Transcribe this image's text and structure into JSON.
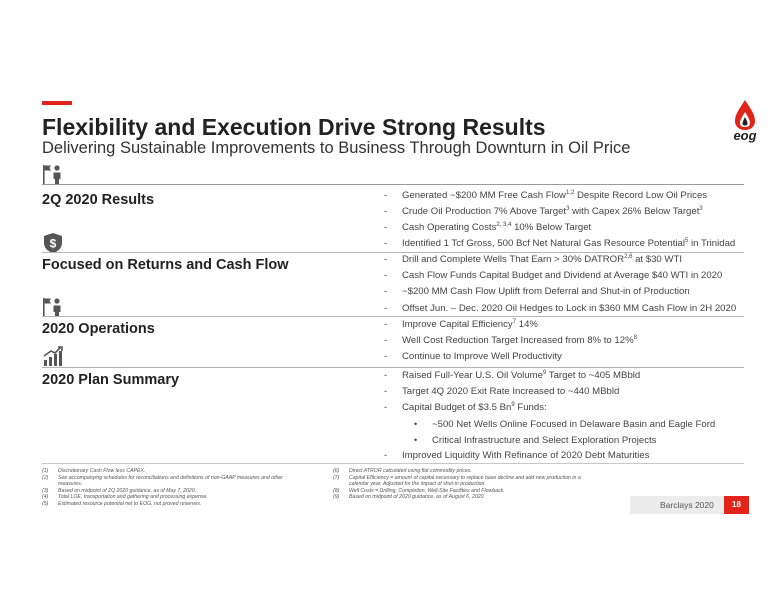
{
  "header": {
    "title": "Flexibility and Execution Drive Strong Results",
    "subtitle": "Delivering Sustainable Improvements to Business Through Downturn in Oil Price",
    "logo_text": "eog"
  },
  "sections": [
    {
      "title": "2Q 2020 Results",
      "icon": "flag-person-icon",
      "bullets": [
        [
          {
            "t": "Generated ~$200 MM Free Cash Flow"
          },
          {
            "s": "1,2"
          },
          {
            "t": " Despite Record Low Oil Prices"
          }
        ],
        [
          {
            "t": "Crude Oil Production 7% Above Target"
          },
          {
            "s": "3"
          },
          {
            "t": " with Capex 26% Below Target"
          },
          {
            "s": "3"
          }
        ],
        [
          {
            "t": "Cash Operating Costs"
          },
          {
            "s": "2, 3,4"
          },
          {
            "t": " 10% Below Target"
          }
        ],
        [
          {
            "t": "Identified 1 Tcf Gross, 500 Bcf Net Natural Gas Resource Potential"
          },
          {
            "s": "5"
          },
          {
            "t": " in Trinidad"
          }
        ]
      ]
    },
    {
      "title": "Focused on Returns and Cash Flow",
      "icon": "dollar-shield-icon",
      "bullets": [
        [
          {
            "t": "Drill and Complete Wells That Earn > 30% DATROR"
          },
          {
            "s": "2,6"
          },
          {
            "t": " at $30 WTI"
          }
        ],
        [
          {
            "t": "Cash Flow Funds Capital Budget and Dividend at Average $40 WTI in 2020"
          }
        ],
        [
          {
            "t": "~$200 MM Cash Flow Uplift from Deferral and Shut-in of Production"
          }
        ],
        [
          {
            "t": "Offset Jun. – Dec. 2020 Oil Hedges to Lock in $360 MM Cash Flow in 2H 2020"
          }
        ]
      ]
    },
    {
      "title": "2020 Operations",
      "icon": "flag-person-icon",
      "bullets": [
        [
          {
            "t": "Improve Capital Efficiency"
          },
          {
            "s": "7"
          },
          {
            "t": " 14%"
          }
        ],
        [
          {
            "t": "Well Cost Reduction Target Increased from 8% to 12%"
          },
          {
            "s": "8"
          }
        ],
        [
          {
            "t": "Continue to Improve Well Productivity"
          }
        ]
      ]
    },
    {
      "title": "2020 Plan Summary",
      "icon": "growth-chart-icon",
      "bullets": [
        [
          {
            "t": "Raised Full-Year U.S. Oil Volume"
          },
          {
            "s": "9"
          },
          {
            "t": " Target to ~405 MBbld"
          }
        ],
        [
          {
            "t": "Target 4Q 2020 Exit Rate Increased to ~440 MBbld"
          }
        ],
        [
          {
            "t": "Capital Budget of $3.5 Bn"
          },
          {
            "s": "9"
          },
          {
            "t": " Funds:"
          }
        ]
      ],
      "subbullets": [
        "~500 Net Wells Online Focused in Delaware Basin and Eagle Ford",
        "Critical Infrastructure and Select Exploration Projects"
      ],
      "final_bullet": "Improved Liquidity With Refinance of 2020 Debt Maturities"
    }
  ],
  "bullet_marker": "-",
  "sub_marker": "•",
  "footnotes_left": [
    {
      "num": "(1)",
      "lines": [
        "Discretionary Cash Flow less CAPEX."
      ]
    },
    {
      "num": "(2)",
      "lines": [
        "See accompanying schedules for reconciliations and definitions of non-GAAP measures and other",
        "measures."
      ]
    },
    {
      "num": "(3)",
      "lines": [
        "Based on midpoint of 2Q 2020 guidance, as of May 7, 2020."
      ]
    },
    {
      "num": "(4)",
      "lines": [
        "Total LOE, transportation and gathering and processing expense."
      ]
    },
    {
      "num": "(5)",
      "lines": [
        "Estimated resource potential net to EOG, not proved reserves."
      ]
    }
  ],
  "footnotes_right": [
    {
      "num": "(6)",
      "lines": [
        "Direct ATROR calculated using flat commodity prices."
      ]
    },
    {
      "num": "(7)",
      "lines": [
        "Capital Efficiency = amount of capital necessary to replace base decline and add new production in a",
        "calendar year.  Adjusted for the impact of shut-in production."
      ]
    },
    {
      "num": "(8)",
      "lines": [
        "Well Costs = Drilling, Completion, Well-Site Facilities and Flowback."
      ]
    },
    {
      "num": "(9)",
      "lines": [
        "Based on midpoint of 2020 guidance, as of August 6, 2020."
      ]
    }
  ],
  "footer": {
    "source": "Barclays 2020",
    "page_number": "18"
  },
  "colors": {
    "accent": "#e2231a",
    "text": "#222222"
  }
}
